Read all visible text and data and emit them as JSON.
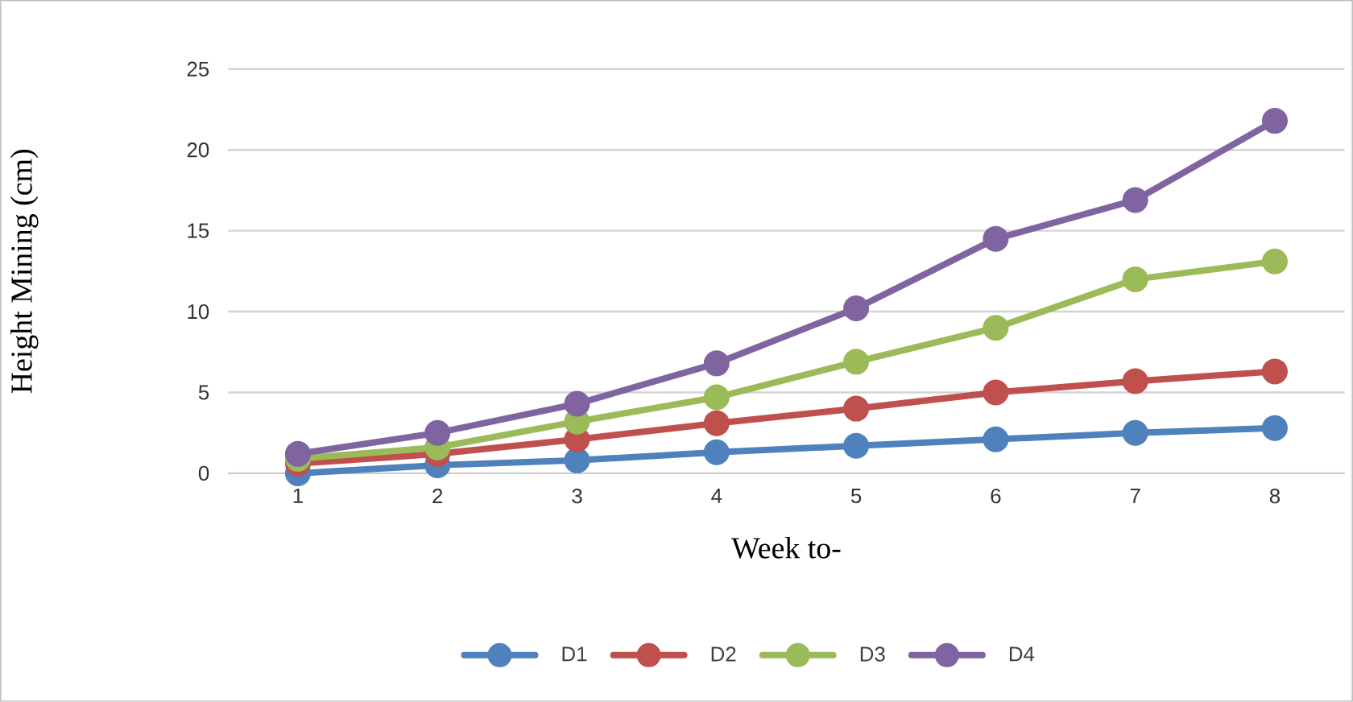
{
  "chart_data": {
    "type": "line",
    "xlabel": "Week to-",
    "ylabel": "Height Mining (cm)",
    "categories": [
      "1",
      "2",
      "3",
      "4",
      "5",
      "6",
      "7",
      "8"
    ],
    "series": [
      {
        "name": "D1",
        "color": "#4f81bd",
        "values": [
          0.0,
          0.5,
          0.8,
          1.3,
          1.7,
          2.1,
          2.5,
          2.8
        ]
      },
      {
        "name": "D2",
        "color": "#c0504d",
        "values": [
          0.6,
          1.2,
          2.1,
          3.1,
          4.0,
          5.0,
          5.7,
          6.3
        ]
      },
      {
        "name": "D3",
        "color": "#9bbb59",
        "values": [
          0.9,
          1.6,
          3.2,
          4.7,
          6.9,
          9.0,
          12.0,
          13.1
        ]
      },
      {
        "name": "D4",
        "color": "#8064a2",
        "values": [
          1.2,
          2.5,
          4.3,
          6.8,
          10.2,
          14.5,
          16.9,
          21.8
        ]
      }
    ],
    "ylim": [
      0,
      25
    ],
    "yticks": [
      0,
      5,
      10,
      15,
      20,
      25
    ],
    "grid": "y",
    "legend": "bottom",
    "marker": "circle",
    "line_style": "solid"
  }
}
